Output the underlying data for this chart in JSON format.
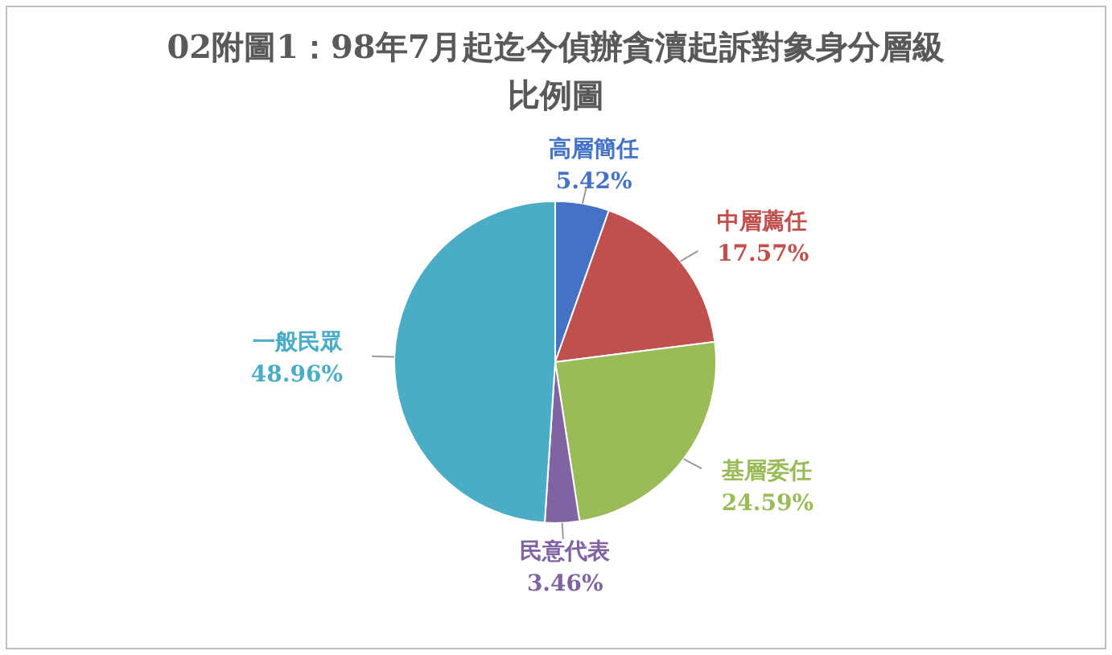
{
  "chart_data": {
    "type": "pie",
    "title": "02附圖1：98年7月起迄今偵辦貪瀆起訴對象身分層級比例圖",
    "categories": [
      "高層簡任",
      "中層薦任",
      "基層委任",
      "民意代表",
      "一般民眾"
    ],
    "values": [
      5.42,
      17.57,
      24.59,
      3.46,
      48.96
    ],
    "value_labels": [
      "5.42%",
      "17.57%",
      "24.59%",
      "3.46%",
      "48.96%"
    ],
    "colors": [
      "#4472c4",
      "#c0504d",
      "#9bbb59",
      "#8064a2",
      "#4bacc6"
    ]
  }
}
